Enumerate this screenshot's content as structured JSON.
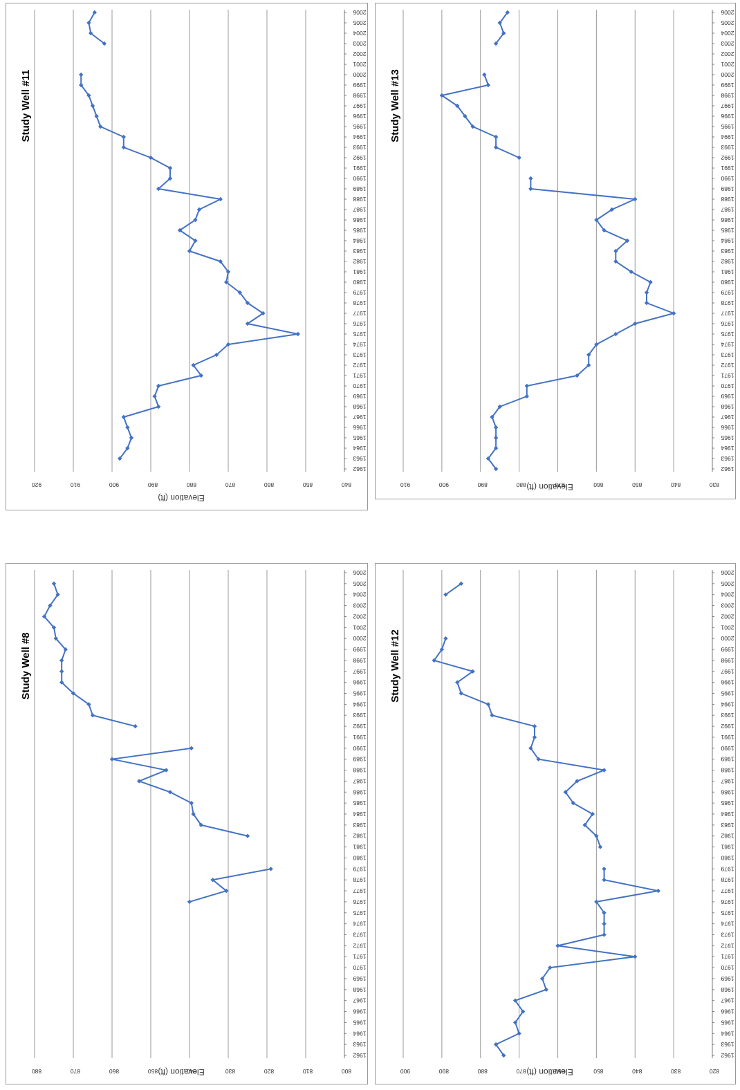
{
  "chart_data": [
    {
      "type": "line",
      "title": "Study Well #8",
      "xlabel": "",
      "ylabel": "Elevation (ft)",
      "ylim": [
        800,
        880
      ],
      "yticks": [
        880,
        870,
        860,
        850,
        840,
        830,
        820,
        810,
        800
      ],
      "grid": true,
      "color": "#4472C4",
      "categories": [
        1962,
        1963,
        1964,
        1965,
        1966,
        1967,
        1968,
        1969,
        1970,
        1971,
        1972,
        1973,
        1974,
        1975,
        1976,
        1977,
        1978,
        1979,
        1980,
        1981,
        1982,
        1983,
        1984,
        1985,
        1986,
        1987,
        1988,
        1989,
        1990,
        1991,
        1992,
        1993,
        1994,
        1995,
        1996,
        1997,
        1998,
        1999,
        2000,
        2001,
        2002,
        2003,
        2004,
        2005,
        2006
      ],
      "values": [
        null,
        null,
        null,
        null,
        null,
        null,
        null,
        null,
        null,
        null,
        null,
        null,
        null,
        null,
        840,
        830.5,
        834,
        819,
        null,
        null,
        825,
        837,
        839,
        839.5,
        845,
        853,
        846,
        860,
        839.5,
        null,
        854,
        865,
        866,
        870,
        873,
        873,
        873,
        872,
        874.5,
        875,
        877.5,
        876,
        874,
        875,
        null
      ]
    },
    {
      "type": "line",
      "title": "Study Well #11",
      "xlabel": "",
      "ylabel": "Elevation (ft)",
      "ylim": [
        840,
        920
      ],
      "yticks": [
        920,
        910,
        900,
        890,
        880,
        870,
        860,
        850,
        840
      ],
      "grid": true,
      "color": "#4472C4",
      "categories": [
        1962,
        1963,
        1964,
        1965,
        1966,
        1967,
        1968,
        1969,
        1970,
        1971,
        1972,
        1973,
        1974,
        1975,
        1976,
        1977,
        1978,
        1979,
        1980,
        1981,
        1982,
        1983,
        1984,
        1985,
        1986,
        1987,
        1988,
        1989,
        1990,
        1991,
        1992,
        1993,
        1994,
        1995,
        1996,
        1997,
        1998,
        1999,
        2000,
        2001,
        2002,
        2003,
        2004,
        2005,
        2006
      ],
      "values": [
        null,
        898,
        896,
        895,
        896,
        897,
        888,
        889,
        888,
        877,
        879,
        873,
        870,
        852,
        865,
        861,
        865,
        867,
        870.5,
        870,
        872,
        880,
        878.5,
        882.5,
        878.5,
        877.5,
        872,
        888,
        885,
        885,
        890,
        897,
        897,
        903,
        904,
        905,
        906,
        908,
        908,
        null,
        null,
        902,
        905.5,
        906,
        904.5
      ]
    },
    {
      "type": "line",
      "title": "Study Well #12",
      "xlabel": "",
      "ylabel": "Elevation (ft)",
      "ylim": [
        820,
        900
      ],
      "yticks": [
        900,
        890,
        880,
        870,
        860,
        850,
        840,
        830,
        820
      ],
      "grid": true,
      "color": "#4472C4",
      "categories": [
        1962,
        1963,
        1964,
        1965,
        1966,
        1967,
        1968,
        1969,
        1970,
        1971,
        1972,
        1973,
        1974,
        1975,
        1976,
        1977,
        1978,
        1979,
        1980,
        1981,
        1982,
        1983,
        1984,
        1985,
        1986,
        1987,
        1988,
        1989,
        1990,
        1991,
        1992,
        1993,
        1994,
        1995,
        1996,
        1997,
        1998,
        1999,
        2000,
        2001,
        2002,
        2003,
        2004,
        2005,
        2006
      ],
      "values": [
        874,
        876,
        870,
        871,
        869,
        871,
        863,
        864,
        862,
        840,
        860,
        848,
        848,
        848,
        850,
        834,
        848,
        848,
        null,
        849,
        850,
        853,
        851,
        856,
        858,
        855,
        848,
        865,
        867,
        866,
        866,
        877,
        878,
        885,
        886,
        882,
        892,
        890,
        889,
        null,
        null,
        null,
        889,
        885,
        null
      ]
    },
    {
      "type": "line",
      "title": "Study Well #13",
      "xlabel": "",
      "ylabel": "Elevation (ft)",
      "ylim": [
        830,
        910
      ],
      "yticks": [
        910,
        900,
        890,
        880,
        870,
        860,
        850,
        840,
        830
      ],
      "grid": true,
      "color": "#4472C4",
      "categories": [
        1962,
        1963,
        1964,
        1965,
        1966,
        1967,
        1968,
        1969,
        1970,
        1971,
        1972,
        1973,
        1974,
        1975,
        1976,
        1977,
        1978,
        1979,
        1980,
        1981,
        1982,
        1983,
        1984,
        1985,
        1986,
        1987,
        1988,
        1989,
        1990,
        1991,
        1992,
        1993,
        1994,
        1995,
        1996,
        1997,
        1998,
        1999,
        2000,
        2001,
        2002,
        2003,
        2004,
        2005,
        2006
      ],
      "values": [
        886,
        888,
        886,
        886,
        886,
        887,
        885,
        878,
        878,
        865,
        862,
        862,
        860,
        855,
        850,
        840,
        847,
        847,
        846,
        851,
        855,
        855,
        852,
        858,
        860,
        856,
        850,
        877,
        877,
        null,
        880,
        886,
        886,
        892,
        894,
        896,
        900,
        888,
        889,
        null,
        null,
        886,
        884,
        885,
        883
      ]
    }
  ]
}
